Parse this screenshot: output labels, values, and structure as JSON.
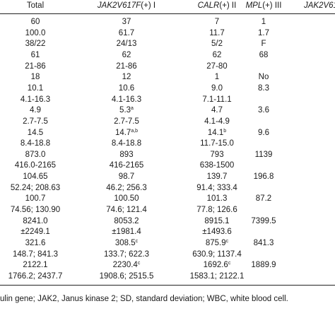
{
  "header": {
    "total": "Total",
    "jak2_gene": "JAK2V617F",
    "jak2_suffix": "(+) I",
    "calr_gene": "CALR",
    "calr_suffix": "(+) II",
    "mpl_gene": "MPL",
    "mpl_suffix": "(+) III",
    "last_partial": "JAK2V61"
  },
  "rows": [
    {
      "c0": "60",
      "c1": "37",
      "c1sup": "",
      "c2": "7",
      "c2sup": "",
      "c3": "1"
    },
    {
      "c0": "100.0",
      "c1": "61.7",
      "c1sup": "",
      "c2": "11.7",
      "c2sup": "",
      "c3": "1.7"
    },
    {
      "c0": "38/22",
      "c1": "24/13",
      "c1sup": "",
      "c2": "5/2",
      "c2sup": "",
      "c3": "F"
    },
    {
      "c0": "61",
      "c1": "62",
      "c1sup": "",
      "c2": "62",
      "c2sup": "",
      "c3": "68"
    },
    {
      "c0": "21-86",
      "c1": "21-86",
      "c1sup": "",
      "c2": "27-80",
      "c2sup": "",
      "c3": ""
    },
    {
      "c0": "18",
      "c1": "12",
      "c1sup": "",
      "c2": "1",
      "c2sup": "",
      "c3": "No"
    },
    {
      "c0": "10.1",
      "c1": "10.6",
      "c1sup": "",
      "c2": "9.0",
      "c2sup": "",
      "c3": "8.3"
    },
    {
      "c0": "4.1-16.3",
      "c1": "4.1-16.3",
      "c1sup": "",
      "c2": "7.1-11.1",
      "c2sup": "",
      "c3": ""
    },
    {
      "c0": "4.9",
      "c1": "5.3",
      "c1sup": "a",
      "c2": "4.7",
      "c2sup": "",
      "c3": "3.6"
    },
    {
      "c0": "2.7-7.5",
      "c1": "2.7-7.5",
      "c1sup": "",
      "c2": "4.1-4.9",
      "c2sup": "",
      "c3": ""
    },
    {
      "c0": "14.5",
      "c1": "14.7",
      "c1sup": "a,b",
      "c2": "14.1",
      "c2sup": "b",
      "c3": "9.6"
    },
    {
      "c0": "8.4-18.8",
      "c1": "8.4-18.8",
      "c1sup": "",
      "c2": "11.7-15.0",
      "c2sup": "",
      "c3": ""
    },
    {
      "c0": "873.0",
      "c1": "893",
      "c1sup": "",
      "c2": "793",
      "c2sup": "",
      "c3": "1139"
    },
    {
      "c0": "416.0-2165",
      "c1": "416-2165",
      "c1sup": "",
      "c2": "638-1500",
      "c2sup": "",
      "c3": ""
    },
    {
      "c0": "104.65",
      "c1": "98.7",
      "c1sup": "",
      "c2": "139.7",
      "c2sup": "",
      "c3": "196.8"
    },
    {
      "c0": "52.24; 208.63",
      "c1": "46.2; 256.3",
      "c1sup": "",
      "c2": "91.4; 333.4",
      "c2sup": "",
      "c3": ""
    },
    {
      "c0": "100.7",
      "c1": "100.50",
      "c1sup": "",
      "c2": "101.3",
      "c2sup": "",
      "c3": "87.2"
    },
    {
      "c0": "74.56; 130.90",
      "c1": "74.6; 121.4",
      "c1sup": "",
      "c2": "77.8; 126.6",
      "c2sup": "",
      "c3": ""
    },
    {
      "c0": "8241.0",
      "c1": "8053.2",
      "c1sup": "",
      "c2": "8915.1",
      "c2sup": "",
      "c3": "7399.5"
    },
    {
      "c0": "±2249.1",
      "c1": "±1981.4",
      "c1sup": "",
      "c2": "±1493.6",
      "c2sup": "",
      "c3": ""
    },
    {
      "c0": "321.6",
      "c1": "308.5",
      "c1sup": "c",
      "c2": "875.9",
      "c2sup": "c",
      "c3": "841.3"
    },
    {
      "c0": "148.7; 841.3",
      "c1": "133.7; 622.3",
      "c1sup": "",
      "c2": "630.9; 1137.4",
      "c2sup": "",
      "c3": ""
    },
    {
      "c0": "2122.1",
      "c1": "2230.4",
      "c1sup": "c",
      "c2": "1692.6",
      "c2sup": "c",
      "c3": "1889.9"
    },
    {
      "c0": "1766.2; 2437.7",
      "c1": "1908.6; 2515.5",
      "c1sup": "",
      "c2": "1583.1; 2122.1",
      "c2sup": "",
      "c3": ""
    }
  ],
  "footer": "ulin gene; JAK2, Janus kinase 2; SD, standard deviation; WBC, white blood cell."
}
